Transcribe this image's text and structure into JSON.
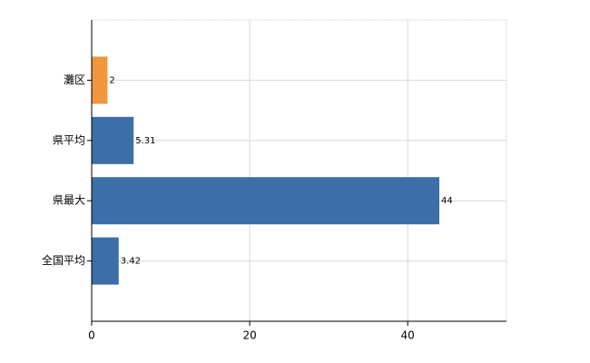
{
  "chart_data": {
    "type": "hbar",
    "categories": [
      "灘区",
      "県平均",
      "県最大",
      "全国平均"
    ],
    "values": [
      2,
      5.31,
      44,
      3.42
    ],
    "colors": [
      "#f0963c",
      "#3c6ea8",
      "#3c6ea8",
      "#3c6ea8"
    ],
    "xlim": [
      0,
      52.5
    ],
    "xticks": [
      0,
      20,
      40
    ],
    "grid": true
  }
}
